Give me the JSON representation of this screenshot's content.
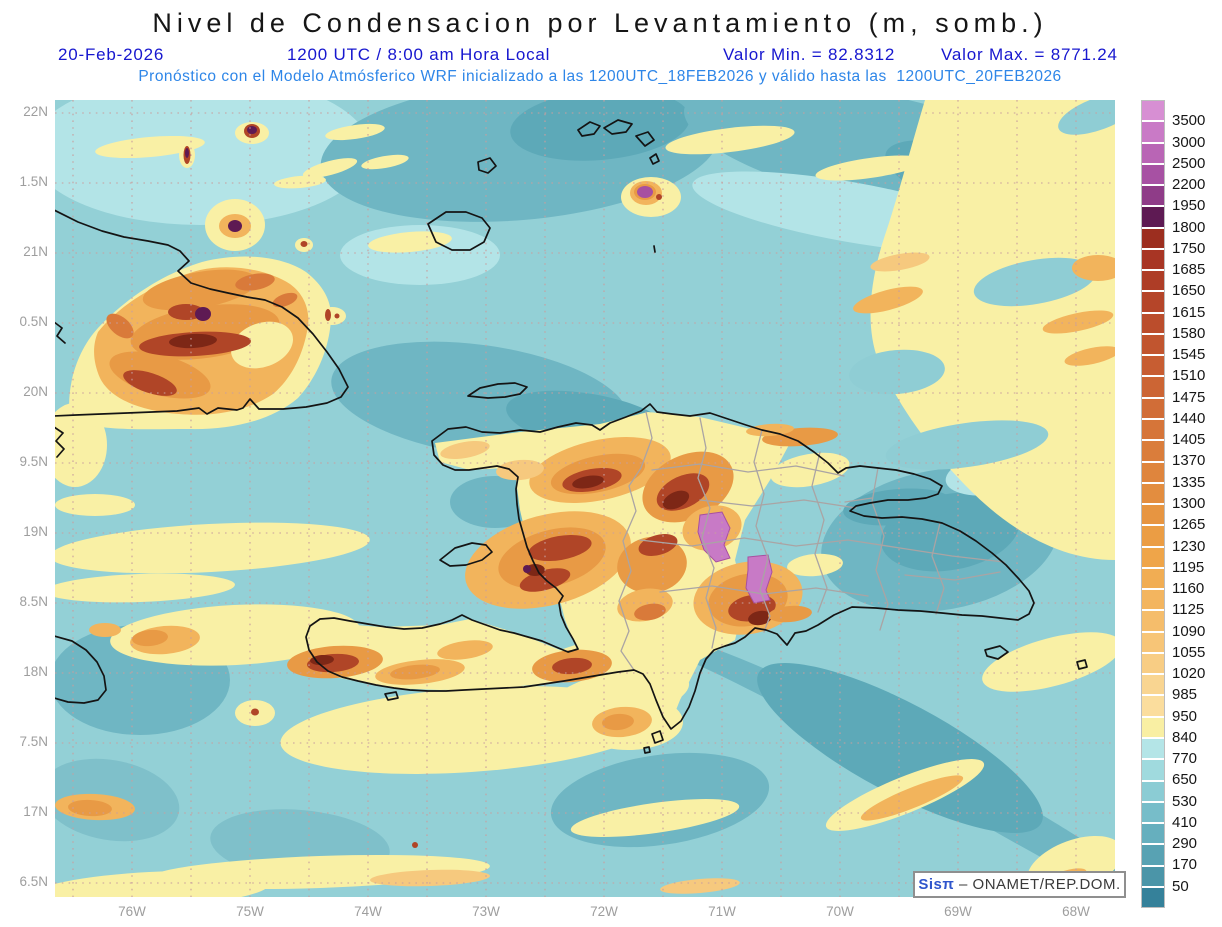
{
  "header": {
    "title": "Nivel de Condensacion por Levantamiento (m, somb.)",
    "date": "20-Feb-2026",
    "time": "1200 UTC / 8:00 am Hora Local",
    "min_label": "Valor Min. = 82.8312",
    "max_label": "Valor Max. = 8771.24",
    "forecast_line": "Pronóstico con el Modelo Atmósferico WRF inicializado a las 1200UTC_18FEB2026 y válido hasta las  1200UTC_20FEB2026"
  },
  "map": {
    "lat_labels": [
      "22N",
      "1.5N",
      "21N",
      "0.5N",
      "20N",
      "9.5N",
      "19N",
      "8.5N",
      "18N",
      "7.5N",
      "17N",
      "6.5N"
    ],
    "lon_labels": [
      "76W",
      "75W",
      "74W",
      "73W",
      "72W",
      "71W",
      "70W",
      "69W",
      "68W"
    ]
  },
  "colorbar": {
    "ticks": [
      "3500",
      "3000",
      "2500",
      "2200",
      "1950",
      "1800",
      "1750",
      "1685",
      "1650",
      "1615",
      "1580",
      "1545",
      "1510",
      "1475",
      "1440",
      "1405",
      "1370",
      "1335",
      "1300",
      "1265",
      "1230",
      "1195",
      "1160",
      "1125",
      "1090",
      "1055",
      "1020",
      "985",
      "950",
      "840",
      "770",
      "650",
      "530",
      "410",
      "290",
      "170",
      "50"
    ],
    "colors": [
      "#d78fd3",
      "#c97ac6",
      "#b965b5",
      "#a751a3",
      "#8f3c88",
      "#5e1a53",
      "#9c2e1f",
      "#a83524",
      "#ae3d26",
      "#b54529",
      "#bb4d2c",
      "#c1552f",
      "#c75d32",
      "#cc6534",
      "#d16d37",
      "#d67539",
      "#da7d3b",
      "#df853d",
      "#e38d3f",
      "#e79541",
      "#eb9d44",
      "#efa549",
      "#f1ad53",
      "#f3b55f",
      "#f5bd6b",
      "#f7c577",
      "#f8cd84",
      "#f9d591",
      "#fbdd9d",
      "#f9efa3",
      "#b4e5e7",
      "#a0dade",
      "#8bccd4",
      "#77bdc9",
      "#66afbe",
      "#58a2b3",
      "#4b95a8",
      "#35819a"
    ]
  },
  "watermark": {
    "brand": "Sisπ",
    "attribution": " – ONAMET/REP.DOM."
  },
  "chart_data": {
    "type": "heatmap",
    "title": "Nivel de Condensacion por Levantamiento (m, somb.)",
    "variable_units": "m",
    "value_min": 82.8312,
    "value_max": 8771.24,
    "levels": [
      50,
      170,
      290,
      410,
      530,
      650,
      770,
      840,
      950,
      985,
      1020,
      1055,
      1090,
      1125,
      1160,
      1195,
      1230,
      1265,
      1300,
      1335,
      1370,
      1405,
      1440,
      1475,
      1510,
      1545,
      1580,
      1615,
      1650,
      1685,
      1750,
      1800,
      1950,
      2200,
      2500,
      3000,
      3500
    ],
    "x_axis_ticks": [
      "76W",
      "75W",
      "74W",
      "73W",
      "72W",
      "71W",
      "70W",
      "69W",
      "68W"
    ],
    "y_axis_ticks": [
      "22N",
      "1.5N",
      "21N",
      "0.5N",
      "20N",
      "9.5N",
      "19N",
      "8.5N",
      "18N",
      "7.5N",
      "17N",
      "6.5N"
    ],
    "legend_position": "right",
    "grid": true
  }
}
